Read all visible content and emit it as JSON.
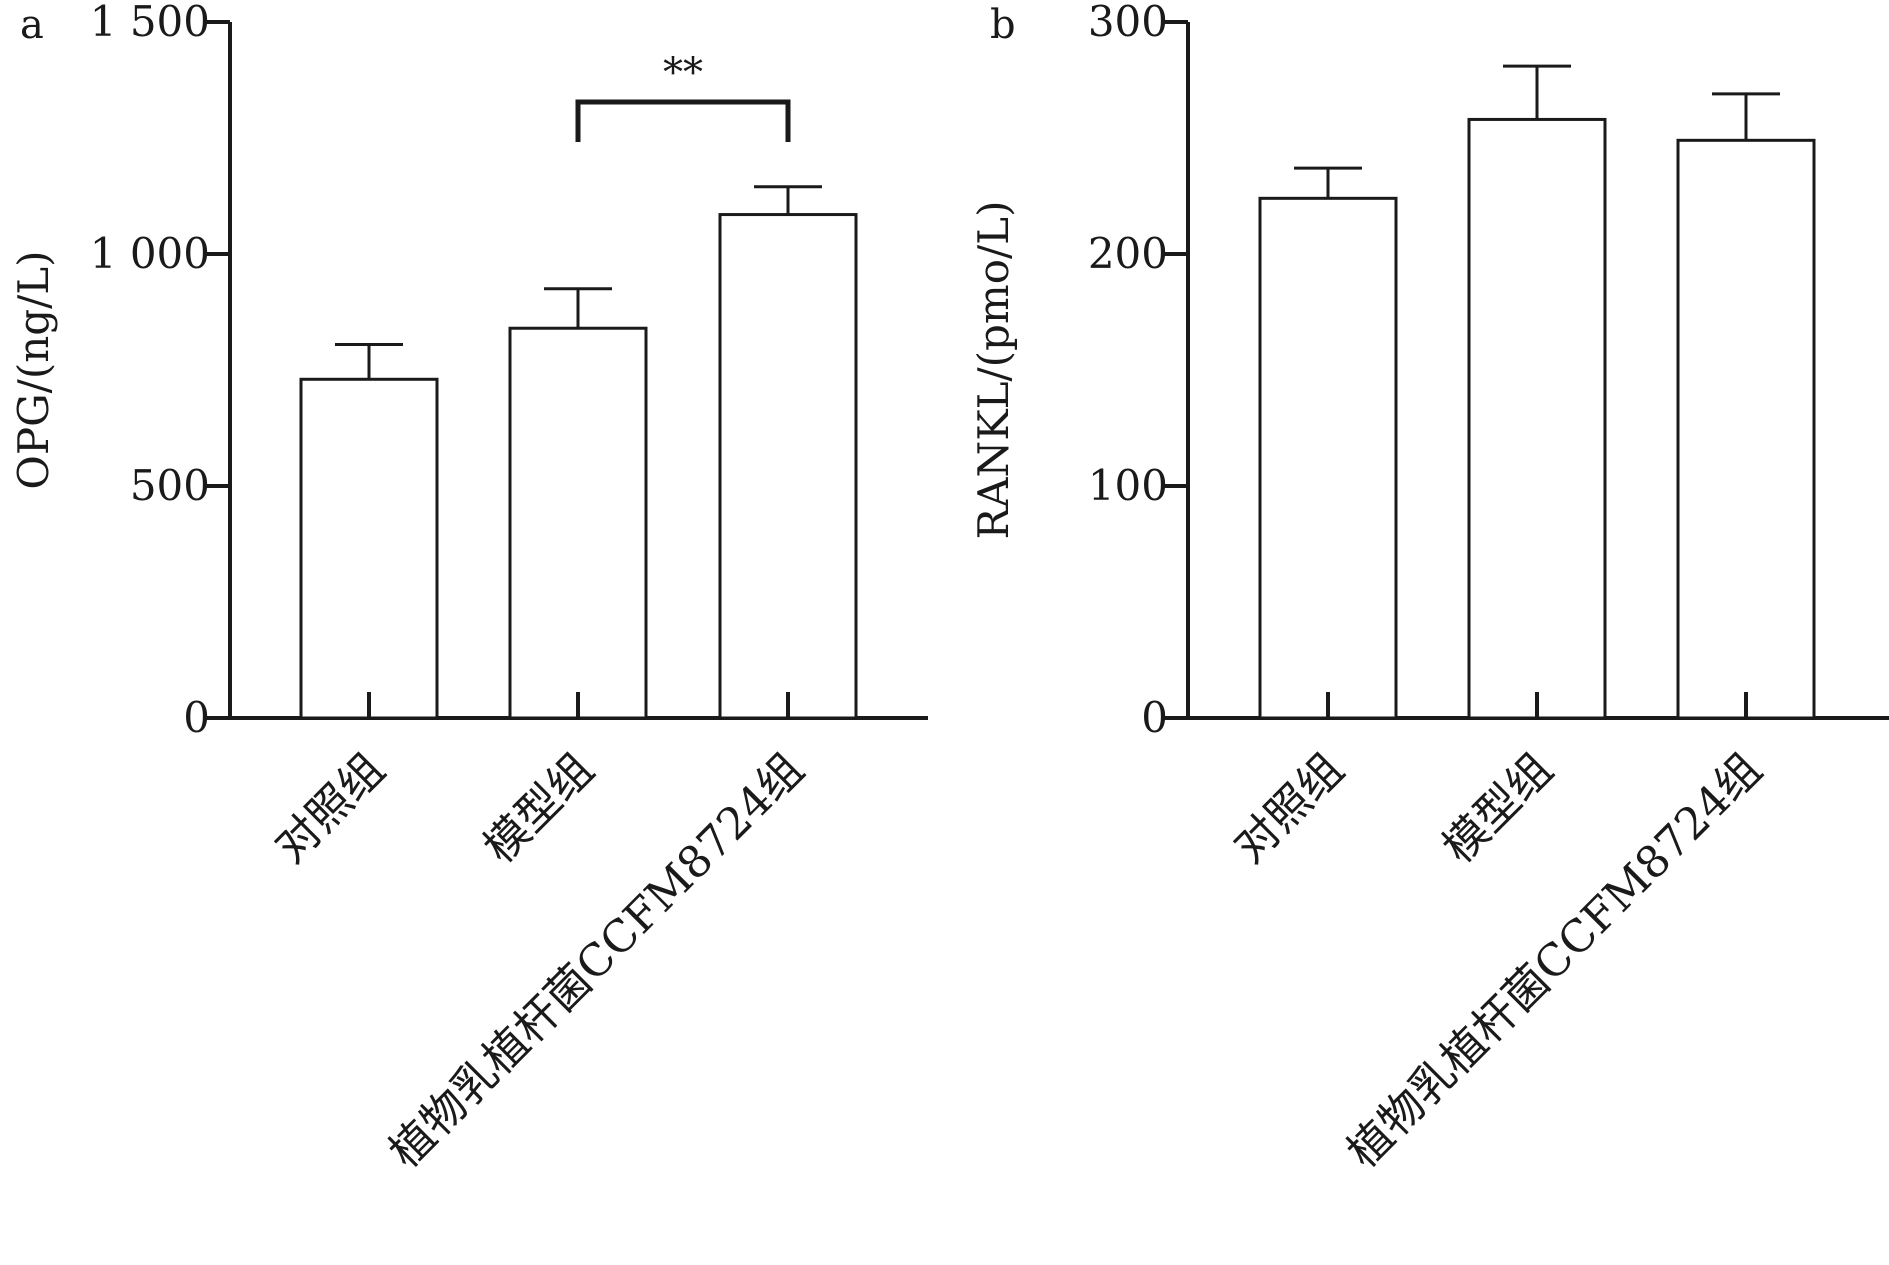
{
  "chart_data": [
    {
      "panel_label": "a",
      "type": "bar",
      "categories": [
        "对照组",
        "模型组",
        "植物乳植杆菌CCFM8724组"
      ],
      "values": [
        730,
        840,
        1085
      ],
      "errors": [
        75,
        85,
        60
      ],
      "ylabel": "OPG/(ng/L)",
      "ylim": [
        0,
        1500
      ],
      "yticks": [
        0,
        500,
        1000,
        1500
      ],
      "ytick_labels": [
        "0",
        "500",
        "1 000",
        "1 500"
      ],
      "grid": false,
      "significance": [
        {
          "from": 1,
          "to": 2,
          "label": "**"
        }
      ]
    },
    {
      "panel_label": "b",
      "type": "bar",
      "categories": [
        "对照组",
        "模型组",
        "植物乳植杆菌CCFM8724组"
      ],
      "values": [
        224,
        258,
        249
      ],
      "errors": [
        13,
        23,
        20
      ],
      "ylabel": "RANKL/(pmo/L)",
      "ylim": [
        0,
        300
      ],
      "yticks": [
        0,
        100,
        200,
        300
      ],
      "ytick_labels": [
        "0",
        "100",
        "200",
        "300"
      ],
      "grid": false,
      "significance": []
    }
  ]
}
